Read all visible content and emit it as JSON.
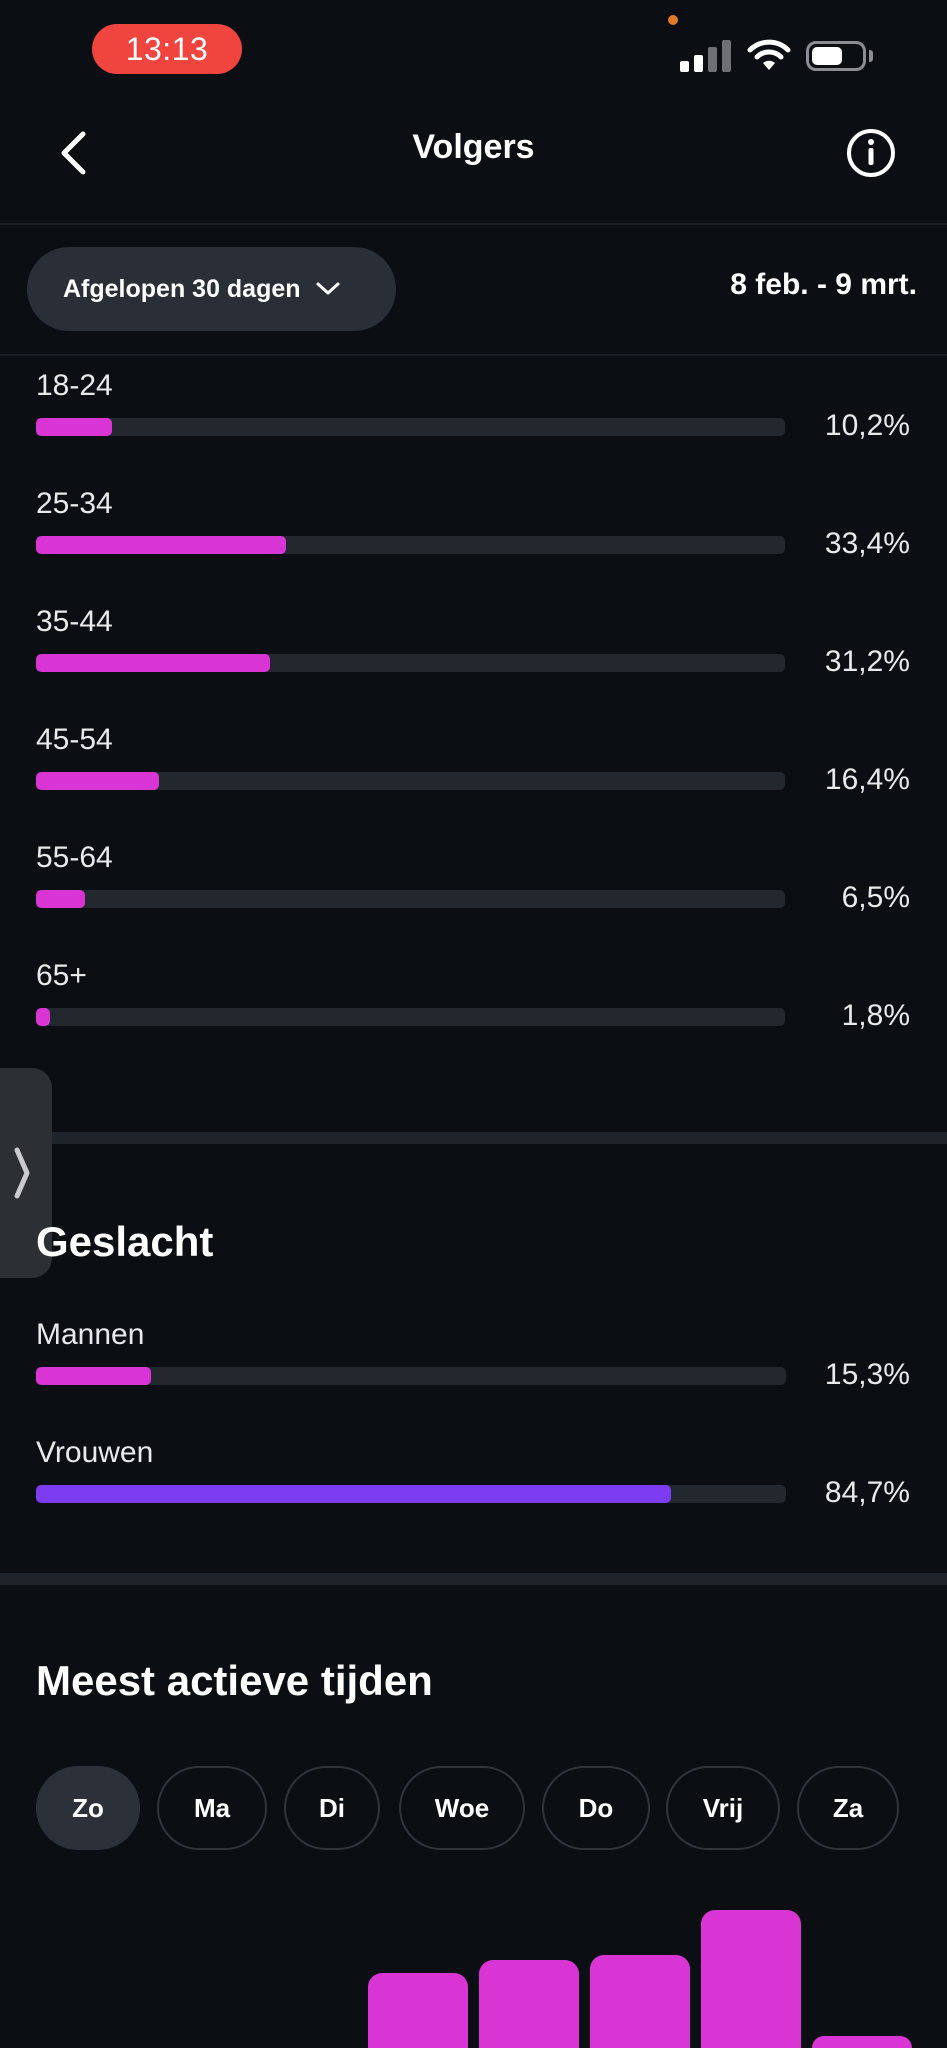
{
  "status_bar": {
    "time": "13:13"
  },
  "header": {
    "title": "Volgers",
    "back_icon": "chevron-left-icon",
    "info_icon": "info-circle-icon"
  },
  "filter": {
    "period_label": "Afgelopen 30 dagen",
    "date_range": "8 feb. - 9 mrt."
  },
  "colors": {
    "magenta": "#d935d4",
    "purple": "#7b3cf2",
    "track": "#23272e",
    "background": "#0b0f14"
  },
  "age": {
    "groups": [
      {
        "label": "18-24",
        "value_text": "10,2%",
        "value": 10.2
      },
      {
        "label": "25-34",
        "value_text": "33,4%",
        "value": 33.4
      },
      {
        "label": "35-44",
        "value_text": "31,2%",
        "value": 31.2
      },
      {
        "label": "45-54",
        "value_text": "16,4%",
        "value": 16.4
      },
      {
        "label": "55-64",
        "value_text": "6,5%",
        "value": 6.5
      },
      {
        "label": "65+",
        "value_text": "1,8%",
        "value": 1.8
      }
    ]
  },
  "gender": {
    "title": "Geslacht",
    "items": [
      {
        "label": "Mannen",
        "value_text": "15,3%",
        "value": 15.3
      },
      {
        "label": "Vrouwen",
        "value_text": "84,7%",
        "value": 84.7
      }
    ]
  },
  "active_times": {
    "title": "Meest actieve tijden",
    "days": [
      "Zo",
      "Ma",
      "Di",
      "Woe",
      "Do",
      "Vrij",
      "Za"
    ],
    "selected_day": "Zo"
  },
  "chart_data": {
    "type": "bar",
    "categories": [
      "",
      "",
      "",
      "",
      "",
      "",
      "",
      ""
    ],
    "values": [
      0,
      0,
      0,
      75,
      88,
      93,
      138,
      12
    ],
    "note_visible": "partial"
  }
}
